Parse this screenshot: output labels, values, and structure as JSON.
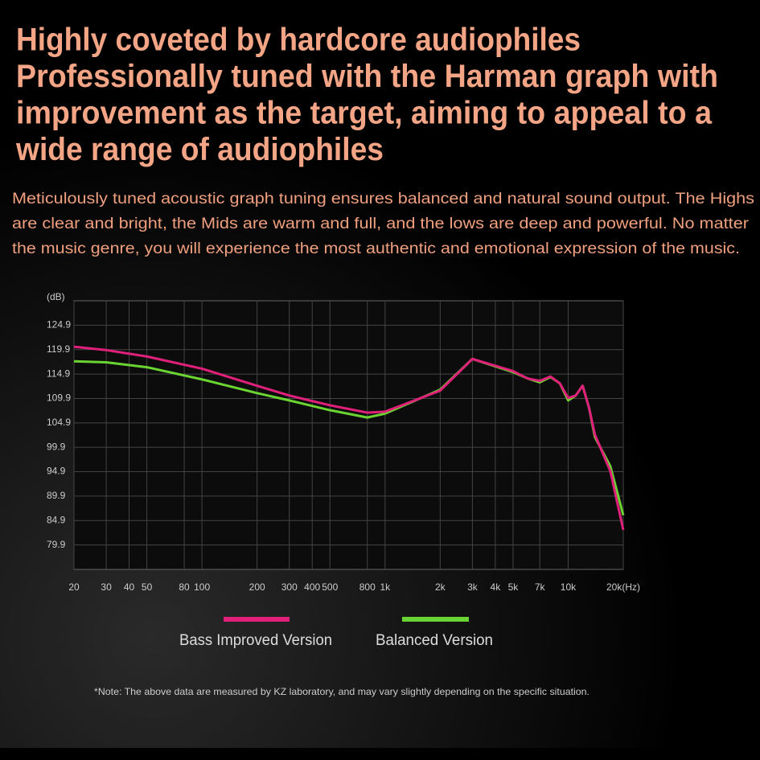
{
  "header": {
    "headline": [
      "Highly coveted by hardcore audiophiles",
      "Professionally tuned with the Harman graph with",
      "improvement as the target, aiming to appeal to a",
      "wide range of audiophiles"
    ],
    "body": [
      "Meticulously tuned acoustic graph tuning ensures balanced and natural sound output. The Highs",
      "are clear and bright, the Mids are warm and full, and the lows are deep and powerful. No matter",
      "the music genre, you will experience the most authentic and emotional expression of the music."
    ]
  },
  "chart_data": {
    "type": "line",
    "y_label": "(dB)",
    "xscale": "log",
    "grid": true,
    "x": [
      20,
      30,
      50,
      100,
      200,
      300,
      500,
      800,
      1000,
      2000,
      3000,
      5000,
      6000,
      7000,
      8000,
      9000,
      10000,
      11000,
      12000,
      13000,
      14000,
      17000,
      20000
    ],
    "series": [
      {
        "name": "Bass Improved Version",
        "color": "#e0207a",
        "values": [
          120.5,
          119.8,
          118.5,
          116,
          112.5,
          110.5,
          108.5,
          107,
          107.2,
          111.5,
          118,
          115.5,
          114,
          113.5,
          114.4,
          113,
          110,
          110.5,
          112.5,
          108,
          102.5,
          95,
          83
        ]
      },
      {
        "name": "Balanced Version",
        "color": "#6ad432",
        "values": [
          117.5,
          117.3,
          116.3,
          113.8,
          111,
          109.5,
          107.5,
          106,
          106.8,
          111.7,
          118,
          115.3,
          114,
          113.2,
          114.3,
          113,
          109.5,
          110.5,
          112.5,
          108,
          102,
          96,
          86
        ]
      }
    ],
    "xlim": [
      20,
      20000
    ],
    "xticks": [
      20,
      30,
      40,
      50,
      80,
      {
        "value": 100,
        "label": "100"
      },
      200,
      300,
      400,
      500,
      800,
      {
        "value": 1000,
        "label": "1k"
      },
      {
        "value": 2000,
        "label": "2k"
      },
      {
        "value": 3000,
        "label": "3k"
      },
      {
        "value": 4000,
        "label": "4k"
      },
      {
        "value": 5000,
        "label": "5k"
      },
      {
        "value": 7000,
        "label": "7k"
      },
      {
        "value": 10000,
        "label": "10k"
      },
      {
        "value": 20000,
        "label": "20k(Hz)"
      }
    ],
    "ylim": [
      74.9,
      129.9
    ],
    "yticks": [
      79.9,
      84.9,
      89.9,
      94.9,
      99.9,
      104.9,
      109.9,
      114.9,
      119.9,
      124.9
    ],
    "note": "*Note: The above data are measured by KZ laboratory, and may vary slightly depending on the specific situation."
  }
}
